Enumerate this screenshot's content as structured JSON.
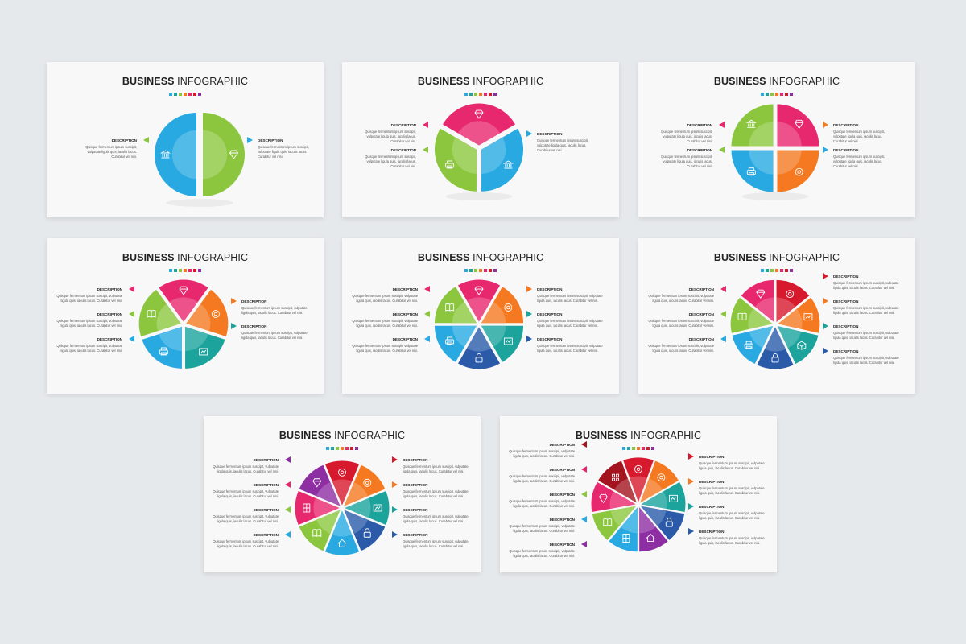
{
  "title_bold": "BUSINESS",
  "title_rest": "INFOGRAPHIC",
  "desc_heading": "DESCRIPTION",
  "desc_lines": [
    "Quisque fermentum ipsum suscipit,",
    "vulputate ligula quis, iaculis lacus.",
    "Curabitur vel nisi."
  ],
  "desc_lines_wide": [
    "Quisque fermentum ipsum suscipit, vulputate",
    "ligula quis, iaculis lacus. Curabitur vel nisi."
  ],
  "palette": {
    "green": "#8cc63f",
    "blue": "#29a9e1",
    "pink": "#e8286e",
    "orange": "#f47920",
    "teal": "#1ba39c",
    "navy": "#2b5ba8",
    "red": "#d7192e",
    "purple": "#8e2ea3",
    "maroon": "#a3141f",
    "dot_colors": [
      "#29a9e1",
      "#1ba39c",
      "#8cc63f",
      "#f47920",
      "#e8286e",
      "#d7192e",
      "#8e2ea3"
    ]
  },
  "slides": [
    {
      "segments": [
        "green",
        "blue"
      ],
      "icons": [
        "diamond-icon",
        "bank-icon"
      ],
      "left": [
        "green"
      ],
      "right": [
        "blue"
      ]
    },
    {
      "segments": [
        "pink",
        "blue",
        "green"
      ],
      "icons": [
        "diamond-icon",
        "bank-icon",
        "printer-icon"
      ],
      "left": [
        "pink",
        "green"
      ],
      "right": [
        "blue"
      ]
    },
    {
      "segments": [
        "pink",
        "orange",
        "blue",
        "green"
      ],
      "icons": [
        "diamond-icon",
        "target-icon",
        "printer-icon",
        "bank-icon"
      ],
      "left": [
        "pink",
        "green"
      ],
      "right": [
        "orange",
        "blue"
      ]
    },
    {
      "segments": [
        "pink",
        "orange",
        "teal",
        "blue",
        "green"
      ],
      "icons": [
        "diamond-icon",
        "target-icon",
        "chart-icon",
        "printer-icon",
        "book-icon"
      ],
      "left": [
        "pink",
        "green",
        "blue"
      ],
      "right": [
        "orange",
        "teal"
      ]
    },
    {
      "segments": [
        "pink",
        "orange",
        "teal",
        "navy",
        "blue",
        "green"
      ],
      "icons": [
        "diamond-icon",
        "target-icon",
        "chart-icon",
        "lock-icon",
        "printer-icon",
        "book-icon"
      ],
      "left": [
        "pink",
        "green",
        "blue"
      ],
      "right": [
        "orange",
        "teal",
        "navy"
      ]
    },
    {
      "segments": [
        "red",
        "orange",
        "teal",
        "navy",
        "blue",
        "green",
        "pink"
      ],
      "icons": [
        "clock-icon",
        "chart-icon",
        "box-icon",
        "lock-icon",
        "printer-icon",
        "book-icon",
        "diamond-icon"
      ],
      "left": [
        "pink",
        "green",
        "blue"
      ],
      "right": [
        "red",
        "orange",
        "teal",
        "navy"
      ]
    },
    {
      "segments": [
        "red",
        "orange",
        "teal",
        "navy",
        "blue",
        "green",
        "pink",
        "purple"
      ],
      "icons": [
        "clock-icon",
        "target-icon",
        "chart-icon",
        "lock-icon",
        "home-icon",
        "book-icon",
        "film-icon",
        "diamond-icon"
      ],
      "left": [
        "purple",
        "pink",
        "green",
        "blue"
      ],
      "right": [
        "red",
        "orange",
        "teal",
        "navy"
      ]
    },
    {
      "segments": [
        "red",
        "orange",
        "teal",
        "navy",
        "purple",
        "blue",
        "green",
        "pink",
        "maroon"
      ],
      "icons": [
        "clock-icon",
        "target-icon",
        "chart-icon",
        "lock-icon",
        "home-icon",
        "film-icon",
        "book-icon",
        "diamond-icon",
        "grid-icon"
      ],
      "left": [
        "maroon",
        "pink",
        "green",
        "blue",
        "purple"
      ],
      "right": [
        "red",
        "orange",
        "teal",
        "navy"
      ]
    }
  ]
}
